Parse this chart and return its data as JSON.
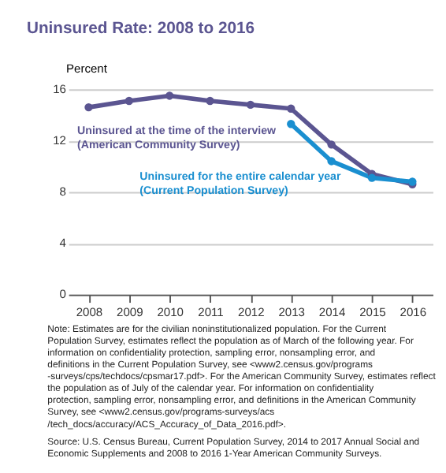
{
  "chart_data": {
    "type": "line",
    "title": "Uninsured Rate: 2008 to 2016",
    "ylabel": "Percent",
    "categories": [
      "2008",
      "2009",
      "2010",
      "2011",
      "2012",
      "2013",
      "2014",
      "2015",
      "2016"
    ],
    "series": [
      {
        "name": "Uninsured at the time of the interview (American Community Survey)",
        "color": "#5b5591",
        "values": [
          14.6,
          15.1,
          15.5,
          15.1,
          14.8,
          14.5,
          11.7,
          9.4,
          8.6
        ]
      },
      {
        "name": "Uninsured for the entire calendar year (Current Population Survey)",
        "color": "#1a8fd0",
        "values": [
          null,
          null,
          null,
          null,
          null,
          13.3,
          10.4,
          9.1,
          8.8
        ]
      }
    ],
    "ylim": [
      0,
      16
    ],
    "yticks": [
      0,
      4,
      8,
      12,
      16
    ],
    "grid": "y",
    "marker": "circle",
    "legend": false,
    "annotations": [
      "Note: Estimates are for the civilian noninstitutionalized population. For the Current Population Survey, estimates reflect the population as of March of the following year. For information on confidentiality protection, sampling error, nonsampling error, and definitions in the Current Population Survey, see <www2.census.gov/programs -surveys/cps/techdocs/cpsmar17.pdf>. For the American Community Survey, estimates reflect the population as of July of the calendar year. For information on confidentiality protection, sampling error, nonsampling error, and definitions in the American Community Survey, see <www2.census.gov/programs-surveys/acs /tech_docs/accuracy/ACS_Accuracy_of_Data_2016.pdf>.",
      "Source: U.S. Census Bureau, Current Population Survey, 2014 to 2017 Annual Social and Economic Supplements and 2008 to 2016 1-Year American Community Surveys."
    ]
  }
}
